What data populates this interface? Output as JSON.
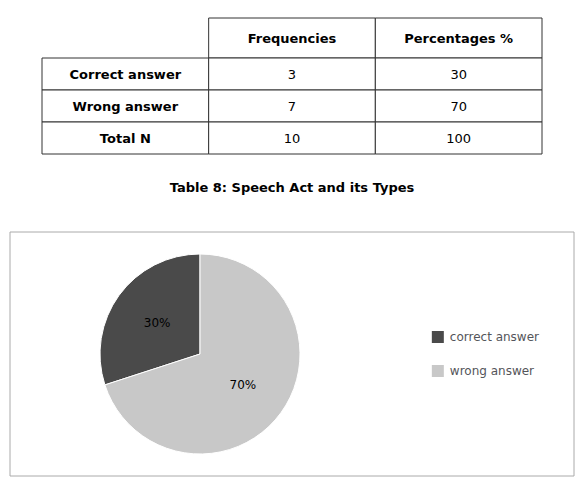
{
  "chart_data": [
    {
      "type": "table",
      "title": "Table 8: Speech Act and its Types",
      "columns": [
        "Frequencies",
        "Percentages %"
      ],
      "rows": [
        {
          "label": "Correct answer",
          "values": [
            3,
            30
          ]
        },
        {
          "label": "Wrong answer",
          "values": [
            7,
            70
          ]
        },
        {
          "label": "Total N",
          "values": [
            10,
            100
          ]
        }
      ]
    },
    {
      "type": "pie",
      "categories": [
        "correct answer",
        "wrong answer"
      ],
      "values": [
        30,
        70
      ],
      "value_labels": [
        "30%",
        "70%"
      ],
      "colors": [
        "#4a4a4a",
        "#c8c8c8"
      ],
      "data_labels": true,
      "legend": "right"
    }
  ]
}
